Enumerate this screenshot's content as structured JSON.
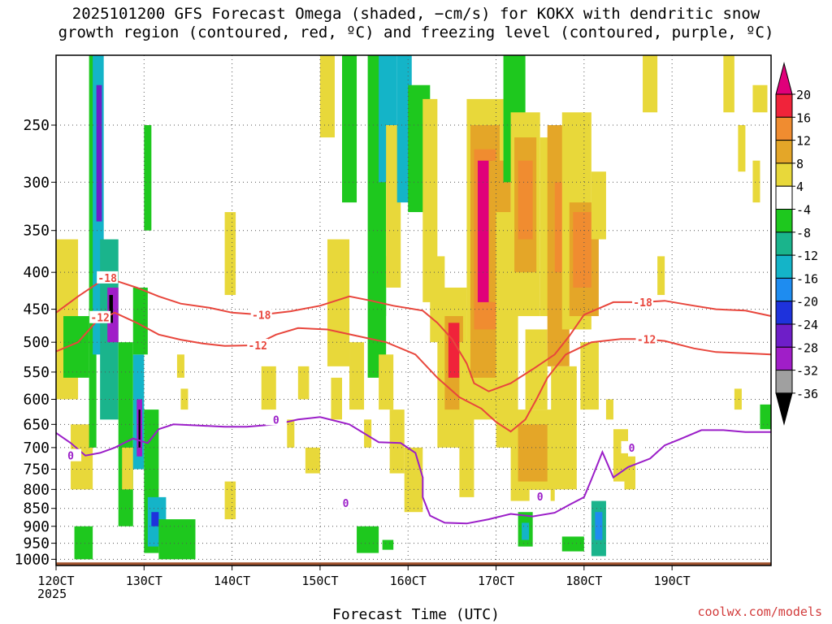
{
  "title": "2025101200 GFS Forecast Omega (shaded, −cm/s) for KOKX with dendritic snow\ngrowth region (contoured, red, ºC) and freezing level (contoured, purple, ºC)",
  "credit": "coolwx.com/models",
  "chart_data": {
    "type": "heatmap",
    "xlabel": "Forecast Time (UTC)",
    "x_ticks": [
      "120CT",
      "130CT",
      "140CT",
      "150CT",
      "160CT",
      "170CT",
      "180CT",
      "190CT"
    ],
    "x_sub": "2025",
    "xlim_hours": [
      0,
      195
    ],
    "y_ticks": [
      250,
      300,
      350,
      400,
      450,
      500,
      550,
      600,
      650,
      700,
      750,
      800,
      850,
      900,
      950,
      1000
    ],
    "ylim": [
      1020,
      200
    ],
    "grid": true,
    "colorbar": {
      "levels": [
        "20",
        "16",
        "12",
        "8",
        "4",
        "-4",
        "-8",
        "-12",
        "-16",
        "-20",
        "-24",
        "-28",
        "-32",
        "-36"
      ],
      "colors": [
        "#e0007a",
        "#f0233a",
        "#f08c30",
        "#e4a628",
        "#e8d83a",
        "#ffffff",
        "#1ec81e",
        "#1ab48c",
        "#14b4c8",
        "#1e8cf0",
        "#1e32dc",
        "#6e1ec8",
        "#a01ec8",
        "#a0a0a0",
        "#000000"
      ]
    },
    "omega_cells": [
      {
        "t0": 0,
        "t1": 6,
        "p0": 360,
        "p1": 600,
        "v": 6
      },
      {
        "t0": 4,
        "t1": 10,
        "p0": 650,
        "p1": 800,
        "v": 5
      },
      {
        "t0": 9,
        "t1": 11,
        "p0": 200,
        "p1": 700,
        "v": -6
      },
      {
        "t0": 10,
        "t1": 13,
        "p0": 200,
        "p1": 520,
        "v": -14
      },
      {
        "t0": 11,
        "t1": 12.5,
        "p0": 220,
        "p1": 340,
        "v": -26
      },
      {
        "t0": 12,
        "t1": 17,
        "p0": 360,
        "p1": 640,
        "v": -10
      },
      {
        "t0": 14,
        "t1": 17,
        "p0": 420,
        "p1": 500,
        "v": -30
      },
      {
        "t0": 14.5,
        "t1": 15.5,
        "p0": 430,
        "p1": 470,
        "v": -40
      },
      {
        "t0": 17,
        "t1": 21,
        "p0": 500,
        "p1": 900,
        "v": -6
      },
      {
        "t0": 18,
        "t1": 21,
        "p0": 700,
        "p1": 800,
        "v": 6
      },
      {
        "t0": 21,
        "t1": 24,
        "p0": 520,
        "p1": 750,
        "v": -14
      },
      {
        "t0": 22,
        "t1": 23.5,
        "p0": 600,
        "p1": 720,
        "v": -30
      },
      {
        "t0": 22.5,
        "t1": 23,
        "p0": 620,
        "p1": 700,
        "v": -40
      },
      {
        "t0": 24,
        "t1": 28,
        "p0": 620,
        "p1": 980,
        "v": -6
      },
      {
        "t0": 25,
        "t1": 30,
        "p0": 820,
        "p1": 960,
        "v": -14
      },
      {
        "t0": 26,
        "t1": 28,
        "p0": 860,
        "p1": 900,
        "v": -22
      },
      {
        "t0": 28,
        "t1": 38,
        "p0": 880,
        "p1": 1000,
        "v": -6
      },
      {
        "t0": 5,
        "t1": 10,
        "p0": 900,
        "p1": 1000,
        "v": -6
      },
      {
        "t0": 21,
        "t1": 25,
        "p0": 420,
        "p1": 520,
        "v": -5
      },
      {
        "t0": 2,
        "t1": 9,
        "p0": 460,
        "p1": 560,
        "v": -6
      },
      {
        "t0": 24,
        "t1": 26,
        "p0": 250,
        "p1": 350,
        "v": -6
      },
      {
        "t0": 33,
        "t1": 35,
        "p0": 520,
        "p1": 560,
        "v": 5
      },
      {
        "t0": 34,
        "t1": 36,
        "p0": 580,
        "p1": 620,
        "v": 5
      },
      {
        "t0": 46,
        "t1": 49,
        "p0": 330,
        "p1": 430,
        "v": 5
      },
      {
        "t0": 46,
        "t1": 49,
        "p0": 780,
        "p1": 880,
        "v": 5
      },
      {
        "t0": 56,
        "t1": 60,
        "p0": 540,
        "p1": 620,
        "v": 5
      },
      {
        "t0": 63,
        "t1": 65,
        "p0": 640,
        "p1": 700,
        "v": 5
      },
      {
        "t0": 66,
        "t1": 69,
        "p0": 540,
        "p1": 600,
        "v": 5
      },
      {
        "t0": 68,
        "t1": 72,
        "p0": 700,
        "p1": 760,
        "v": 5
      },
      {
        "t0": 72,
        "t1": 76,
        "p0": 200,
        "p1": 260,
        "v": 5
      },
      {
        "t0": 74,
        "t1": 80,
        "p0": 360,
        "p1": 540,
        "v": 5
      },
      {
        "t0": 75,
        "t1": 78,
        "p0": 560,
        "p1": 640,
        "v": 5
      },
      {
        "t0": 78,
        "t1": 82,
        "p0": 200,
        "p1": 320,
        "v": -6
      },
      {
        "t0": 80,
        "t1": 84,
        "p0": 500,
        "p1": 620,
        "v": 5
      },
      {
        "t0": 84,
        "t1": 86,
        "p0": 640,
        "p1": 700,
        "v": 5
      },
      {
        "t0": 85,
        "t1": 90,
        "p0": 200,
        "p1": 560,
        "v": -6
      },
      {
        "t0": 88,
        "t1": 93,
        "p0": 200,
        "p1": 300,
        "v": -14
      },
      {
        "t0": 86,
        "t1": 90,
        "p0": 380,
        "p1": 460,
        "v": -6
      },
      {
        "t0": 90,
        "t1": 94,
        "p0": 250,
        "p1": 420,
        "v": 5
      },
      {
        "t0": 93,
        "t1": 97,
        "p0": 200,
        "p1": 320,
        "v": -14
      },
      {
        "t0": 96,
        "t1": 102,
        "p0": 220,
        "p1": 330,
        "v": -6
      },
      {
        "t0": 88,
        "t1": 92,
        "p0": 520,
        "p1": 620,
        "v": 5
      },
      {
        "t0": 91,
        "t1": 95,
        "p0": 620,
        "p1": 760,
        "v": 5
      },
      {
        "t0": 95,
        "t1": 100,
        "p0": 700,
        "p1": 860,
        "v": 5
      },
      {
        "t0": 100,
        "t1": 104,
        "p0": 230,
        "p1": 440,
        "v": 5
      },
      {
        "t0": 102,
        "t1": 106,
        "p0": 380,
        "p1": 500,
        "v": 5
      },
      {
        "t0": 104,
        "t1": 112,
        "p0": 420,
        "p1": 700,
        "v": 5
      },
      {
        "t0": 106,
        "t1": 111,
        "p0": 460,
        "p1": 620,
        "v": 9
      },
      {
        "t0": 107,
        "t1": 110,
        "p0": 470,
        "p1": 560,
        "v": 18
      },
      {
        "t0": 110,
        "t1": 114,
        "p0": 500,
        "p1": 820,
        "v": 5
      },
      {
        "t0": 112,
        "t1": 122,
        "p0": 230,
        "p1": 640,
        "v": 5
      },
      {
        "t0": 113,
        "t1": 121,
        "p0": 250,
        "p1": 560,
        "v": 9
      },
      {
        "t0": 114,
        "t1": 120,
        "p0": 270,
        "p1": 480,
        "v": 14
      },
      {
        "t0": 115,
        "t1": 119,
        "p0": 280,
        "p1": 440,
        "v": 22
      },
      {
        "t0": 118,
        "t1": 124,
        "p0": 280,
        "p1": 440,
        "v": 9
      },
      {
        "t0": 120,
        "t1": 126,
        "p0": 330,
        "p1": 700,
        "v": 5
      },
      {
        "t0": 122,
        "t1": 128,
        "p0": 200,
        "p1": 300,
        "v": -6
      },
      {
        "t0": 124,
        "t1": 132,
        "p0": 240,
        "p1": 460,
        "v": 5
      },
      {
        "t0": 125,
        "t1": 131,
        "p0": 260,
        "p1": 400,
        "v": 9
      },
      {
        "t0": 126,
        "t1": 130,
        "p0": 280,
        "p1": 360,
        "v": 13
      },
      {
        "t0": 128,
        "t1": 134,
        "p0": 480,
        "p1": 620,
        "v": 5
      },
      {
        "t0": 124,
        "t1": 136,
        "p0": 620,
        "p1": 830,
        "v": 5
      },
      {
        "t0": 126,
        "t1": 134,
        "p0": 650,
        "p1": 780,
        "v": 9
      },
      {
        "t0": 132,
        "t1": 136,
        "p0": 260,
        "p1": 460,
        "v": 5
      },
      {
        "t0": 134,
        "t1": 140,
        "p0": 250,
        "p1": 540,
        "v": 9
      },
      {
        "t0": 136,
        "t1": 140,
        "p0": 300,
        "p1": 400,
        "v": 13
      },
      {
        "t0": 135,
        "t1": 142,
        "p0": 540,
        "p1": 800,
        "v": 5
      },
      {
        "t0": 138,
        "t1": 146,
        "p0": 240,
        "p1": 480,
        "v": 5
      },
      {
        "t0": 140,
        "t1": 148,
        "p0": 320,
        "p1": 460,
        "v": 9
      },
      {
        "t0": 141,
        "t1": 146,
        "p0": 330,
        "p1": 420,
        "v": 13
      },
      {
        "t0": 143,
        "t1": 148,
        "p0": 500,
        "p1": 620,
        "v": 5
      },
      {
        "t0": 146,
        "t1": 150,
        "p0": 290,
        "p1": 360,
        "v": 5
      },
      {
        "t0": 126,
        "t1": 130,
        "p0": 860,
        "p1": 960,
        "v": -6
      },
      {
        "t0": 127,
        "t1": 129,
        "p0": 890,
        "p1": 940,
        "v": -14
      },
      {
        "t0": 138,
        "t1": 144,
        "p0": 930,
        "p1": 975,
        "v": -6
      },
      {
        "t0": 146,
        "t1": 150,
        "p0": 830,
        "p1": 990,
        "v": -10
      },
      {
        "t0": 147,
        "t1": 149,
        "p0": 860,
        "p1": 940,
        "v": -16
      },
      {
        "t0": 82,
        "t1": 88,
        "p0": 900,
        "p1": 980,
        "v": -6
      },
      {
        "t0": 89,
        "t1": 92,
        "p0": 940,
        "p1": 970,
        "v": -6
      },
      {
        "t0": 150,
        "t1": 152,
        "p0": 600,
        "p1": 640,
        "v": 5
      },
      {
        "t0": 152,
        "t1": 156,
        "p0": 660,
        "p1": 780,
        "v": 5
      },
      {
        "t0": 155,
        "t1": 158,
        "p0": 720,
        "p1": 800,
        "v": 5
      },
      {
        "t0": 160,
        "t1": 164,
        "p0": 200,
        "p1": 240,
        "v": 5
      },
      {
        "t0": 164,
        "t1": 166,
        "p0": 380,
        "p1": 430,
        "v": 5
      },
      {
        "t0": 182,
        "t1": 185,
        "p0": 200,
        "p1": 240,
        "v": 5
      },
      {
        "t0": 186,
        "t1": 188,
        "p0": 250,
        "p1": 290,
        "v": 5
      },
      {
        "t0": 190,
        "t1": 192,
        "p0": 280,
        "p1": 320,
        "v": 5
      },
      {
        "t0": 185,
        "t1": 187,
        "p0": 580,
        "p1": 620,
        "v": 5
      },
      {
        "t0": 190,
        "t1": 194,
        "p0": 220,
        "p1": 240,
        "v": 5
      },
      {
        "t0": 192,
        "t1": 195,
        "p0": 610,
        "p1": 660,
        "v": -6
      }
    ],
    "contours": [
      {
        "name": "-18",
        "color": "#e8463c",
        "points": [
          [
            0,
            455
          ],
          [
            6,
            432
          ],
          [
            12,
            412
          ],
          [
            17,
            412
          ],
          [
            22,
            420
          ],
          [
            28,
            432
          ],
          [
            34,
            442
          ],
          [
            42,
            448
          ],
          [
            48,
            455
          ],
          [
            56,
            458
          ],
          [
            64,
            453
          ],
          [
            72,
            445
          ],
          [
            80,
            432
          ],
          [
            86,
            438
          ],
          [
            92,
            445
          ],
          [
            100,
            452
          ],
          [
            104,
            470
          ],
          [
            108,
            495
          ],
          [
            112,
            535
          ],
          [
            114,
            570
          ],
          [
            118,
            585
          ],
          [
            124,
            570
          ],
          [
            130,
            545
          ],
          [
            136,
            520
          ],
          [
            140,
            490
          ],
          [
            144,
            458
          ],
          [
            152,
            440
          ],
          [
            160,
            440
          ],
          [
            166,
            438
          ],
          [
            174,
            445
          ],
          [
            180,
            450
          ],
          [
            188,
            452
          ],
          [
            195,
            460
          ]
        ],
        "labels": [
          {
            "t": 14,
            "p": 407,
            "text": "-18"
          },
          {
            "t": 56,
            "p": 458,
            "text": "-18"
          },
          {
            "t": 160,
            "p": 440,
            "text": "-18"
          }
        ]
      },
      {
        "name": "-12",
        "color": "#e8463c",
        "points": [
          [
            0,
            515
          ],
          [
            6,
            500
          ],
          [
            11,
            468
          ],
          [
            16,
            455
          ],
          [
            22,
            470
          ],
          [
            28,
            488
          ],
          [
            34,
            496
          ],
          [
            40,
            502
          ],
          [
            46,
            506
          ],
          [
            54,
            505
          ],
          [
            60,
            488
          ],
          [
            66,
            478
          ],
          [
            74,
            480
          ],
          [
            82,
            490
          ],
          [
            90,
            500
          ],
          [
            98,
            520
          ],
          [
            104,
            560
          ],
          [
            110,
            596
          ],
          [
            116,
            618
          ],
          [
            120,
            645
          ],
          [
            124,
            665
          ],
          [
            128,
            640
          ],
          [
            131,
            600
          ],
          [
            134,
            560
          ],
          [
            139,
            520
          ],
          [
            146,
            500
          ],
          [
            154,
            495
          ],
          [
            160,
            495
          ],
          [
            166,
            498
          ],
          [
            174,
            510
          ],
          [
            180,
            516
          ],
          [
            188,
            518
          ],
          [
            195,
            520
          ]
        ],
        "labels": [
          {
            "t": 12,
            "p": 462,
            "text": "-12"
          },
          {
            "t": 55,
            "p": 505,
            "text": "-12"
          },
          {
            "t": 161,
            "p": 495,
            "text": "-12"
          }
        ]
      },
      {
        "name": "0",
        "color": "#9b1ec8",
        "points": [
          [
            0,
            668
          ],
          [
            4,
            690
          ],
          [
            8,
            718
          ],
          [
            12,
            712
          ],
          [
            16,
            700
          ],
          [
            21,
            680
          ],
          [
            25,
            690
          ],
          [
            28,
            660
          ],
          [
            32,
            650
          ],
          [
            38,
            652
          ],
          [
            46,
            655
          ],
          [
            52,
            655
          ],
          [
            60,
            650
          ],
          [
            66,
            640
          ],
          [
            72,
            635
          ],
          [
            80,
            650
          ],
          [
            88,
            688
          ],
          [
            94,
            690
          ],
          [
            98,
            712
          ],
          [
            100,
            770
          ],
          [
            100,
            820
          ],
          [
            102,
            870
          ],
          [
            106,
            890
          ],
          [
            112,
            892
          ],
          [
            118,
            880
          ],
          [
            124,
            865
          ],
          [
            130,
            872
          ],
          [
            136,
            862
          ],
          [
            140,
            840
          ],
          [
            144,
            820
          ],
          [
            146,
            775
          ],
          [
            149,
            710
          ],
          [
            152,
            770
          ],
          [
            156,
            745
          ],
          [
            162,
            725
          ],
          [
            166,
            695
          ],
          [
            170,
            682
          ],
          [
            176,
            662
          ],
          [
            182,
            662
          ],
          [
            188,
            666
          ],
          [
            195,
            666
          ]
        ],
        "labels": [
          {
            "t": 4,
            "p": 718,
            "text": "0"
          },
          {
            "t": 60,
            "p": 640,
            "text": "0"
          },
          {
            "t": 79,
            "p": 835,
            "text": "0"
          },
          {
            "t": 132,
            "p": 818,
            "text": "0"
          },
          {
            "t": 157,
            "p": 700,
            "text": "0"
          }
        ]
      }
    ]
  }
}
